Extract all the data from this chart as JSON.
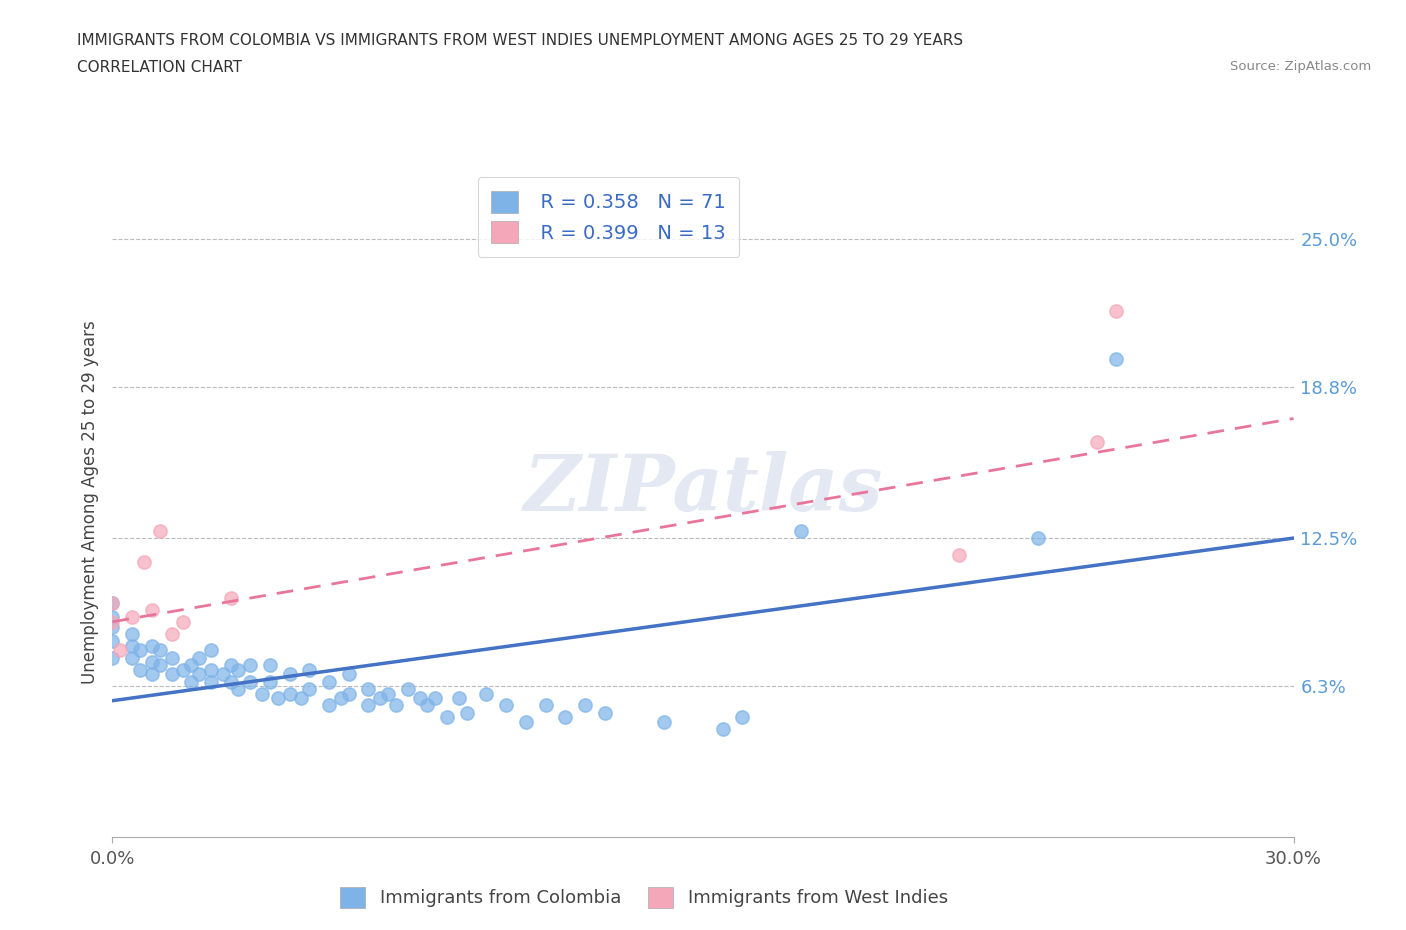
{
  "title_line1": "IMMIGRANTS FROM COLOMBIA VS IMMIGRANTS FROM WEST INDIES UNEMPLOYMENT AMONG AGES 25 TO 29 YEARS",
  "title_line2": "CORRELATION CHART",
  "source": "Source: ZipAtlas.com",
  "ylabel": "Unemployment Among Ages 25 to 29 years",
  "xlim": [
    0.0,
    0.3
  ],
  "ylim": [
    0.0,
    0.28
  ],
  "yticks": [
    0.063,
    0.125,
    0.188,
    0.25
  ],
  "ytick_labels": [
    "6.3%",
    "12.5%",
    "18.8%",
    "25.0%"
  ],
  "xticks": [
    0.0,
    0.3
  ],
  "xtick_labels": [
    "0.0%",
    "30.0%"
  ],
  "colombia_color": "#7eb3e8",
  "west_indies_color": "#f4a7b9",
  "colombia_line_color": "#4472c4",
  "west_indies_line_color": "#e8769a",
  "colombia_R": 0.358,
  "colombia_N": 71,
  "west_indies_R": 0.399,
  "west_indies_N": 13,
  "watermark": "ZIPatlas",
  "colombia_scatter_x": [
    0.0,
    0.0,
    0.0,
    0.0,
    0.0,
    0.005,
    0.005,
    0.005,
    0.007,
    0.007,
    0.01,
    0.01,
    0.01,
    0.012,
    0.012,
    0.015,
    0.015,
    0.018,
    0.02,
    0.02,
    0.022,
    0.022,
    0.025,
    0.025,
    0.025,
    0.028,
    0.03,
    0.03,
    0.032,
    0.032,
    0.035,
    0.035,
    0.038,
    0.04,
    0.04,
    0.042,
    0.045,
    0.045,
    0.048,
    0.05,
    0.05,
    0.055,
    0.055,
    0.058,
    0.06,
    0.06,
    0.065,
    0.065,
    0.068,
    0.07,
    0.072,
    0.075,
    0.078,
    0.08,
    0.082,
    0.085,
    0.088,
    0.09,
    0.095,
    0.1,
    0.105,
    0.11,
    0.115,
    0.12,
    0.125,
    0.14,
    0.155,
    0.16,
    0.175,
    0.235,
    0.255
  ],
  "colombia_scatter_y": [
    0.075,
    0.082,
    0.088,
    0.092,
    0.098,
    0.075,
    0.08,
    0.085,
    0.07,
    0.078,
    0.068,
    0.073,
    0.08,
    0.072,
    0.078,
    0.068,
    0.075,
    0.07,
    0.065,
    0.072,
    0.068,
    0.075,
    0.065,
    0.07,
    0.078,
    0.068,
    0.065,
    0.072,
    0.062,
    0.07,
    0.065,
    0.072,
    0.06,
    0.065,
    0.072,
    0.058,
    0.06,
    0.068,
    0.058,
    0.062,
    0.07,
    0.055,
    0.065,
    0.058,
    0.06,
    0.068,
    0.055,
    0.062,
    0.058,
    0.06,
    0.055,
    0.062,
    0.058,
    0.055,
    0.058,
    0.05,
    0.058,
    0.052,
    0.06,
    0.055,
    0.048,
    0.055,
    0.05,
    0.055,
    0.052,
    0.048,
    0.045,
    0.05,
    0.128,
    0.125,
    0.2
  ],
  "west_indies_scatter_x": [
    0.0,
    0.0,
    0.002,
    0.005,
    0.008,
    0.01,
    0.012,
    0.015,
    0.018,
    0.03,
    0.215,
    0.25,
    0.255
  ],
  "west_indies_scatter_y": [
    0.09,
    0.098,
    0.078,
    0.092,
    0.115,
    0.095,
    0.128,
    0.085,
    0.09,
    0.1,
    0.118,
    0.165,
    0.22
  ],
  "colombia_line_x": [
    0.0,
    0.3
  ],
  "colombia_line_y": [
    0.057,
    0.125
  ],
  "west_indies_line_x": [
    0.0,
    0.3
  ],
  "west_indies_line_y": [
    0.09,
    0.175
  ],
  "grid_color": "#bbbbbb",
  "background_color": "#ffffff"
}
